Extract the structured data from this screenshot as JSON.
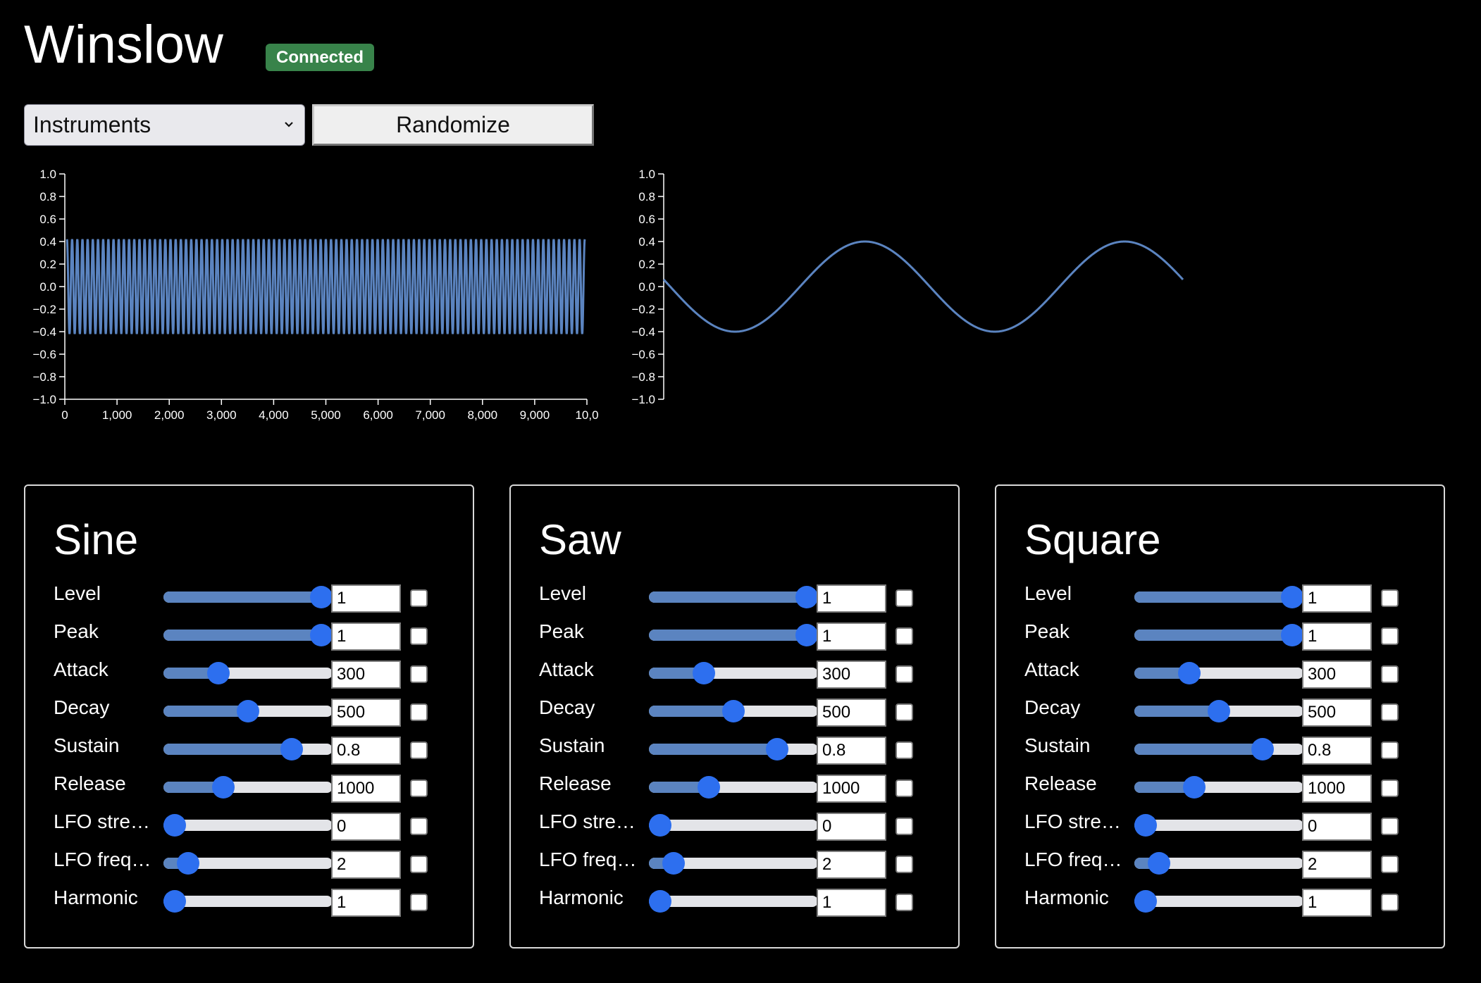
{
  "app": {
    "title": "Winslow",
    "status": "Connected",
    "status_color": "#38834a",
    "accent_color": "#2d6fef",
    "series_color": "#5b84c0"
  },
  "toolbar": {
    "select_value": "Instruments",
    "select_icon": "chevron-down-icon",
    "randomize_label": "Randomize"
  },
  "waveform_full": {
    "type": "line",
    "y_ticks": [
      "1.0",
      "0.8",
      "0.6",
      "0.4",
      "0.2",
      "0.0",
      "−0.2",
      "−0.4",
      "−0.6",
      "−0.8",
      "−1.0"
    ],
    "x_ticks": [
      "0",
      "1,000",
      "2,000",
      "3,000",
      "4,000",
      "5,000",
      "6,000",
      "7,000",
      "8,000",
      "9,000",
      "10,0"
    ],
    "ylim": [
      -1,
      1
    ],
    "xlim": [
      0,
      10000
    ],
    "amplitude": 0.42,
    "cycles": 100
  },
  "waveform_detail": {
    "type": "line",
    "y_ticks": [
      "1.0",
      "0.8",
      "0.6",
      "0.4",
      "0.2",
      "0.0",
      "−0.2",
      "−0.4",
      "−0.6",
      "−0.8",
      "−1.0"
    ],
    "ylim": [
      -1,
      1
    ],
    "amplitude": 0.4,
    "cycles": 2
  },
  "params": [
    {
      "label": "Level",
      "fraction": 1.0
    },
    {
      "label": "Peak",
      "fraction": 1.0
    },
    {
      "label": "Attack",
      "fraction": 0.3
    },
    {
      "label": "Decay",
      "fraction": 0.5
    },
    {
      "label": "Sustain",
      "fraction": 0.8
    },
    {
      "label": "Release",
      "fraction": 0.33
    },
    {
      "label": "LFO stre…",
      "fraction": 0.0
    },
    {
      "label": "LFO freq…",
      "fraction": 0.09
    },
    {
      "label": "Harmonic",
      "fraction": 0.0
    }
  ],
  "panels": [
    {
      "title": "Sine",
      "values": [
        "1",
        "1",
        "300",
        "500",
        "0.8",
        "1000",
        "0",
        "2",
        "1"
      ]
    },
    {
      "title": "Saw",
      "values": [
        "1",
        "1",
        "300",
        "500",
        "0.8",
        "1000",
        "0",
        "2",
        "1"
      ]
    },
    {
      "title": "Square",
      "values": [
        "1",
        "1",
        "300",
        "500",
        "0.8",
        "1000",
        "0",
        "2",
        "1"
      ]
    }
  ]
}
